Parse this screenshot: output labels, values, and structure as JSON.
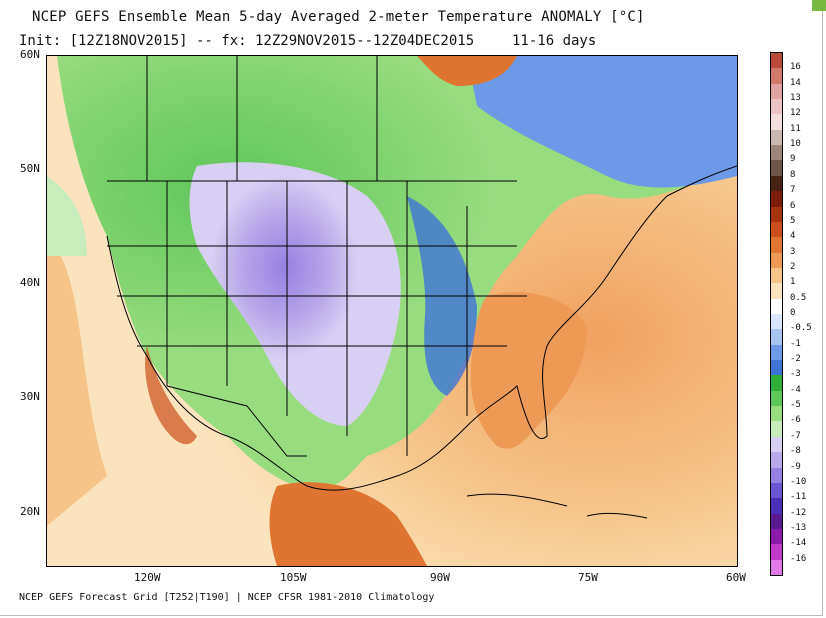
{
  "title": "NCEP GEFS Ensemble Mean 5-day Averaged 2-meter Temperature ANOMALY [°C]",
  "subtitle": "Init: [12Z18NOV2015] -- fx: 12Z29NOV2015--12Z04DEC2015",
  "lead_time": "11-16 days",
  "footer": "NCEP GEFS Forecast Grid [T252|T190] | NCEP CFSR 1981-2010 Climatology",
  "map": {
    "lat_labels": [
      "60N",
      "50N",
      "40N",
      "30N",
      "20N"
    ],
    "lon_labels": [
      "120W",
      "105W",
      "90W",
      "75W",
      "60W"
    ],
    "region": "North America"
  },
  "colorbar": {
    "labels": [
      "16",
      "14",
      "13",
      "12",
      "11",
      "10",
      "9",
      "8",
      "7",
      "6",
      "5",
      "4",
      "3",
      "2",
      "1",
      "0.5",
      "0",
      "-0.5",
      "-1",
      "-2",
      "-3",
      "-4",
      "-5",
      "-6",
      "-7",
      "-8",
      "-9",
      "-10",
      "-11",
      "-12",
      "-13",
      "-14",
      "-16"
    ],
    "colors": [
      "#b84a3a",
      "#cf7a6a",
      "#e2a3a3",
      "#ecc2c4",
      "#f4dfe0",
      "#c9b8b0",
      "#9c867c",
      "#6e564a",
      "#4a2214",
      "#7a1e0a",
      "#a8330f",
      "#cc4e1c",
      "#e07532",
      "#ee9a57",
      "#f6c488",
      "#fbe4bd",
      "#ffffff",
      "#d9e6fb",
      "#a8c4f2",
      "#6c9ae6",
      "#3f74d6",
      "#2fae3a",
      "#5fc65a",
      "#98dc80",
      "#c8ecbc",
      "#d8d0f2",
      "#b9a8ea",
      "#9680e0",
      "#6a55d2",
      "#4a2fb8",
      "#5a1a90",
      "#8c1aa8",
      "#c23ac8",
      "#e07ae8"
    ],
    "unit": "°C"
  }
}
